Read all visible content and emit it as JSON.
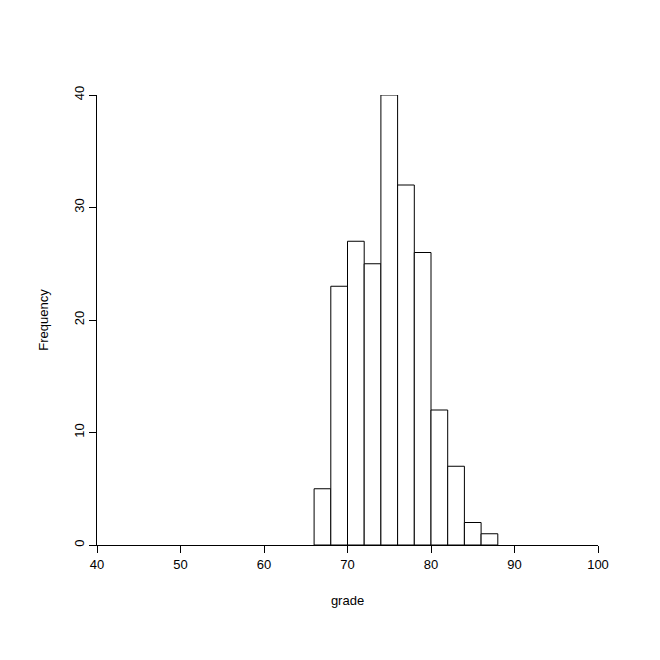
{
  "chart_data": {
    "type": "histogram",
    "x_label": "grade",
    "y_label": "Frequency",
    "bins": [
      66,
      68,
      70,
      72,
      74,
      76,
      78,
      80,
      82,
      84,
      86,
      88
    ],
    "values": [
      5,
      23,
      27,
      25,
      40,
      32,
      26,
      12,
      7,
      2,
      1
    ],
    "color": "#ffffff",
    "xlim": [
      40,
      100
    ],
    "xticks": [
      40,
      50,
      60,
      70,
      80,
      90,
      100
    ],
    "ylim": [
      0,
      40
    ],
    "yticks": [
      0,
      10,
      20,
      30,
      40
    ],
    "grid": false
  }
}
